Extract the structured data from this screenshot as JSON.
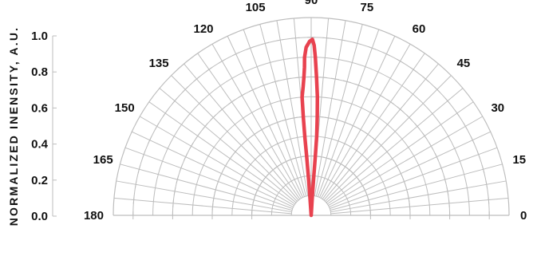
{
  "chart_data": {
    "type": "polar",
    "subtype": "radiation-pattern-half",
    "title": "",
    "ylabel": "NORMALIZED INENSITY, A.U.",
    "rlim": [
      0,
      1.0
    ],
    "radial_ticks": [
      "0.0",
      "0.2",
      "0.4",
      "0.6",
      "0.8",
      "1.0"
    ],
    "radial_tick_values": [
      0,
      0.2,
      0.4,
      0.6,
      0.8,
      1.0
    ],
    "angle_ticks": [
      "180",
      "165",
      "150",
      "135",
      "120",
      "105",
      "90",
      "75",
      "60",
      "45",
      "30",
      "15",
      "0"
    ],
    "angle_tick_values": [
      180,
      165,
      150,
      135,
      120,
      105,
      90,
      75,
      60,
      45,
      30,
      15,
      0
    ],
    "grid": true,
    "series": [
      {
        "color": "#e8424f",
        "points": [
          {
            "angle": 86,
            "r": 0.0
          },
          {
            "angle": 86.5,
            "r": 0.1
          },
          {
            "angle": 86.2,
            "r": 0.2
          },
          {
            "angle": 86.0,
            "r": 0.3
          },
          {
            "angle": 86.0,
            "r": 0.4
          },
          {
            "angle": 86.5,
            "r": 0.5
          },
          {
            "angle": 87.0,
            "r": 0.6
          },
          {
            "angle": 87.8,
            "r": 0.7
          },
          {
            "angle": 88.5,
            "r": 0.8
          },
          {
            "angle": 89.0,
            "r": 0.86
          },
          {
            "angle": 89.6,
            "r": 0.89
          },
          {
            "angle": 90.5,
            "r": 0.88
          },
          {
            "angle": 91.7,
            "r": 0.85
          },
          {
            "angle": 92.4,
            "r": 0.8
          },
          {
            "angle": 92.6,
            "r": 0.75
          },
          {
            "angle": 93.0,
            "r": 0.7
          },
          {
            "angle": 93.6,
            "r": 0.65
          },
          {
            "angle": 94.4,
            "r": 0.6
          },
          {
            "angle": 94.6,
            "r": 0.5
          },
          {
            "angle": 94.6,
            "r": 0.4
          },
          {
            "angle": 94.4,
            "r": 0.3
          },
          {
            "angle": 94.2,
            "r": 0.2
          },
          {
            "angle": 94.0,
            "r": 0.1
          },
          {
            "angle": 94.0,
            "r": 0.0
          }
        ]
      }
    ]
  }
}
